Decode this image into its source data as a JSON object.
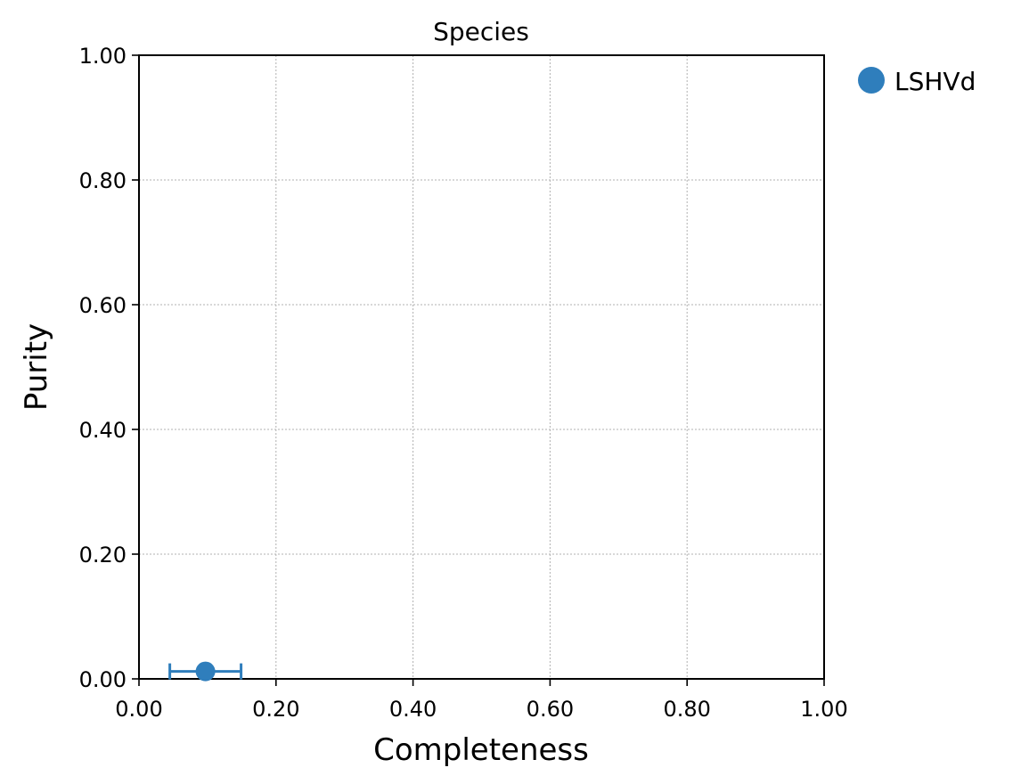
{
  "chart_data": {
    "type": "scatter",
    "title": "Species",
    "xlabel": "Completeness",
    "ylabel": "Purity",
    "xlim": [
      0,
      1
    ],
    "ylim": [
      0,
      1
    ],
    "xticks": [
      "0.00",
      "0.20",
      "0.40",
      "0.60",
      "0.80",
      "1.00"
    ],
    "yticks": [
      "0.00",
      "0.20",
      "0.40",
      "0.60",
      "0.80",
      "1.00"
    ],
    "grid": true,
    "legend_position": "outside-top-right",
    "series": [
      {
        "name": "LSHVd",
        "color": "#2f7ebc",
        "points": [
          {
            "x": 0.097,
            "y": 0.012,
            "xerr_low": 0.045,
            "xerr_high": 0.149
          }
        ]
      }
    ]
  }
}
